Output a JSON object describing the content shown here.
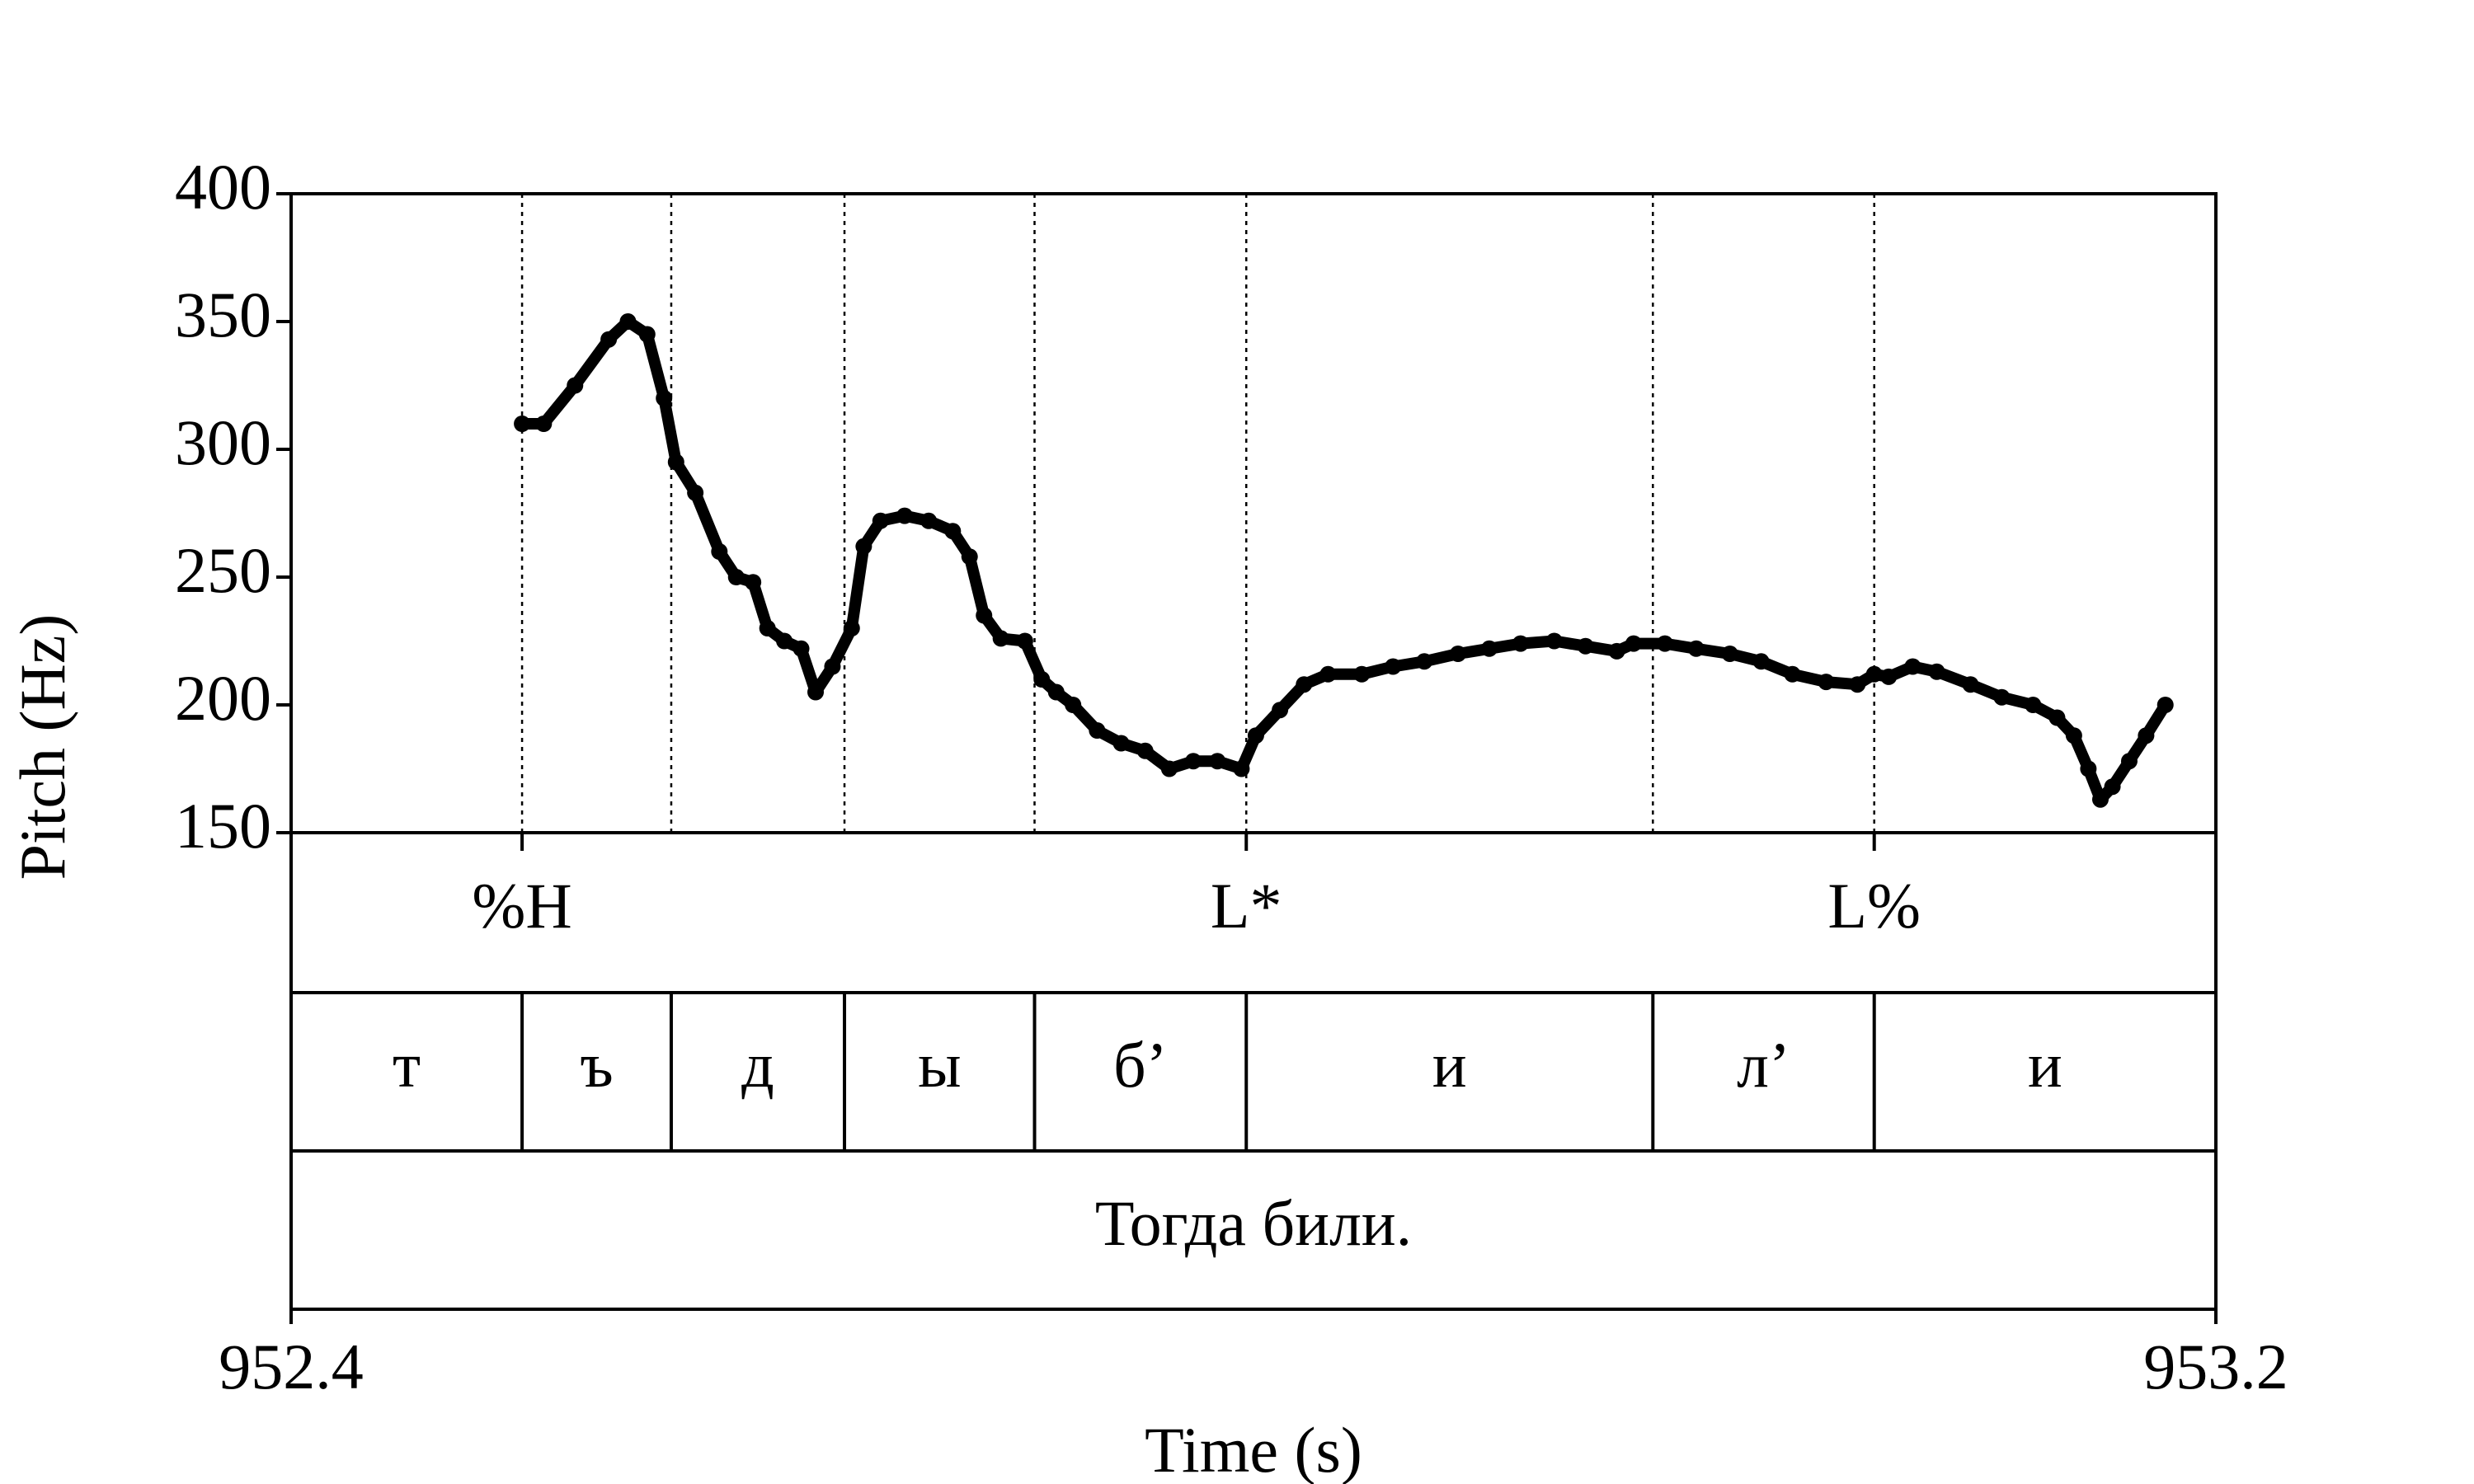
{
  "chart_data": {
    "type": "scatter",
    "ylabel": "Pitch (Hz)",
    "xlabel": "Time (s)",
    "xlim": [
      952.4,
      953.2
    ],
    "xticks": [
      952.4,
      953.2
    ],
    "ylim": [
      150,
      400
    ],
    "yticks": [
      150,
      200,
      250,
      300,
      350,
      400
    ],
    "color": "#000000",
    "x": [
      952.496,
      952.505,
      952.518,
      952.532,
      952.54,
      952.548,
      952.555,
      952.56,
      952.568,
      952.578,
      952.585,
      952.592,
      952.598,
      952.605,
      952.612,
      952.618,
      952.625,
      952.633,
      952.638,
      952.645,
      952.655,
      952.665,
      952.675,
      952.682,
      952.688,
      952.695,
      952.705,
      952.712,
      952.718,
      952.725,
      952.735,
      952.745,
      952.755,
      952.765,
      952.775,
      952.785,
      952.795,
      952.801,
      952.811,
      952.821,
      952.831,
      952.845,
      952.858,
      952.871,
      952.885,
      952.898,
      952.911,
      952.925,
      952.938,
      952.951,
      952.958,
      952.971,
      952.984,
      952.998,
      953.011,
      953.024,
      953.038,
      953.051,
      953.058,
      953.064,
      953.074,
      953.084,
      953.098,
      953.111,
      953.124,
      953.134,
      953.141,
      953.147,
      953.152,
      953.157,
      953.164,
      953.171,
      953.179
    ],
    "values": [
      310,
      310,
      325,
      343,
      350,
      345,
      320,
      295,
      283,
      260,
      250,
      248,
      230,
      225,
      222,
      205,
      215,
      230,
      262,
      272,
      274,
      272,
      268,
      258,
      235,
      226,
      225,
      210,
      205,
      200,
      190,
      185,
      182,
      175,
      178,
      178,
      175,
      188,
      198,
      208,
      212,
      212,
      215,
      217,
      220,
      222,
      224,
      225,
      223,
      221,
      224,
      224,
      222,
      220,
      217,
      212,
      209,
      208,
      212,
      211,
      215,
      213,
      208,
      203,
      200,
      195,
      188,
      175,
      163,
      168,
      178,
      188,
      200
    ],
    "tones": {
      "x": [
        952.496,
        952.797,
        953.058
      ],
      "labels": [
        "%H",
        "L*",
        "L%"
      ]
    },
    "segments": {
      "boundaries": [
        952.496,
        952.558,
        952.63,
        952.709,
        952.797,
        952.966,
        953.058
      ],
      "labels": [
        "т",
        "ъ",
        "д",
        "ы",
        "б’",
        "и",
        "л’",
        "и"
      ]
    },
    "sentence": "Тогда били."
  }
}
